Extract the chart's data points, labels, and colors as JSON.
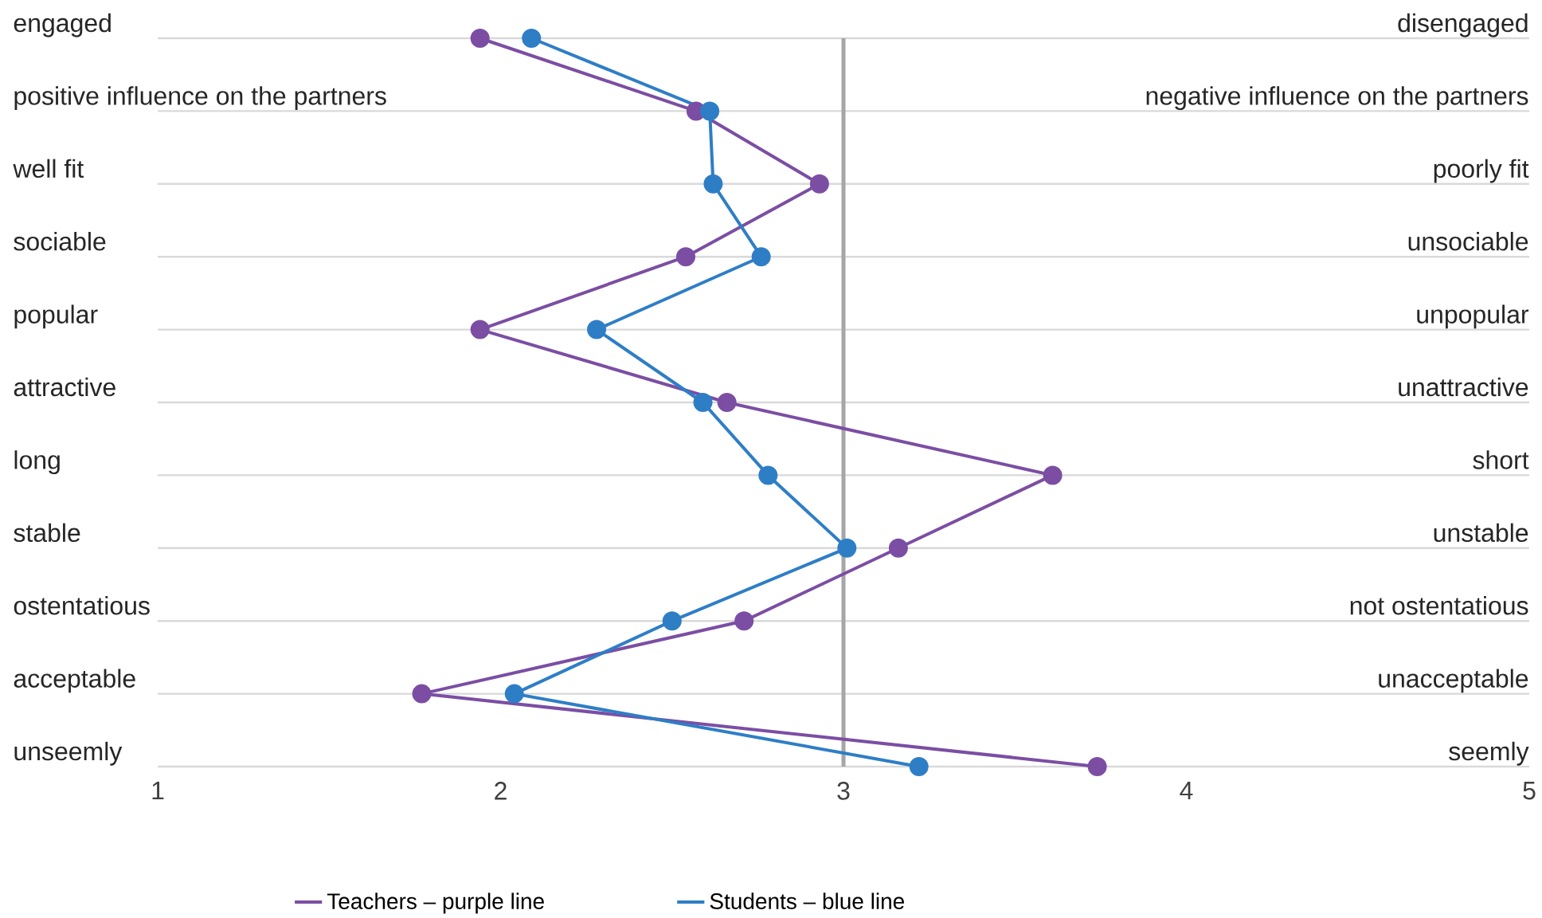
{
  "chart_data": {
    "type": "line",
    "orientation": "horizontal",
    "categories": [
      "engaged",
      "positive influence on the partners",
      "well fit",
      "sociable",
      "popular",
      "attractive",
      "long",
      "stable",
      "ostentatious",
      "acceptable",
      "unseemly"
    ],
    "y2_categories": [
      "disengaged",
      "negative influence on the partners",
      "poorly fit",
      "unsociable",
      "unpopular",
      "unattractive",
      "short",
      "unstable",
      "not ostentatious",
      "unacceptable",
      "seemly"
    ],
    "series": [
      {
        "name": "Teachers – purple line",
        "color": "#7b4ea3",
        "values": [
          1.94,
          2.57,
          2.93,
          2.54,
          1.94,
          2.66,
          3.61,
          3.16,
          2.71,
          1.77,
          3.74
        ]
      },
      {
        "name": "Students – blue line",
        "color": "#2e7ec6",
        "values": [
          2.09,
          2.61,
          2.62,
          2.76,
          2.28,
          2.59,
          2.78,
          3.01,
          2.5,
          2.04,
          3.22
        ]
      }
    ],
    "xlim": [
      1,
      5
    ],
    "xticks": [
      1,
      2,
      3,
      4,
      5
    ],
    "ref_lines": [
      {
        "axis": "x",
        "value": 3,
        "color": "#a6a6a6"
      }
    ],
    "grid": "y",
    "legend": "bottom",
    "marker": "circle",
    "line_style": "solid",
    "tick_labels": "x"
  }
}
